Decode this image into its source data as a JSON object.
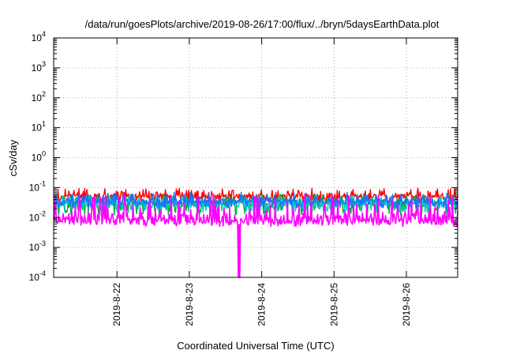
{
  "chart_data": {
    "type": "line",
    "title": "/data/run/goesPlots/archive/2019-08-26/17:00/flux/../bryn/5daysEarthData.plot",
    "xlabel": "Coordinated Universal Time (UTC)",
    "ylabel": "cSv/day",
    "x_range": [
      "2019-08-21T03:00",
      "2019-08-26T17:00"
    ],
    "x_ticks": [
      "2019-8-22",
      "2019-8-23",
      "2019-8-24",
      "2019-8-25",
      "2019-8-26"
    ],
    "y_scale": "log",
    "ylim": [
      0.0001,
      10000
    ],
    "y_ticks": [
      {
        "base": "10",
        "exp": "-4",
        "value": 0.0001
      },
      {
        "base": "10",
        "exp": "-3",
        "value": 0.001
      },
      {
        "base": "10",
        "exp": "-2",
        "value": 0.01
      },
      {
        "base": "10",
        "exp": "-1",
        "value": 0.1
      },
      {
        "base": "10",
        "exp": "0",
        "value": 1
      },
      {
        "base": "10",
        "exp": "1",
        "value": 10
      },
      {
        "base": "10",
        "exp": "2",
        "value": 100
      },
      {
        "base": "10",
        "exp": "3",
        "value": 1000
      },
      {
        "base": "10",
        "exp": "4",
        "value": 10000
      }
    ],
    "grid": true,
    "series": [
      {
        "color": "#ff0000",
        "median": 0.05,
        "spread_low": 0.03,
        "spread_high": 0.095
      },
      {
        "color": "#00aa44",
        "median": 0.03,
        "spread_low": 0.012,
        "spread_high": 0.06
      },
      {
        "color": "#00cccc",
        "median": 0.03,
        "spread_low": 0.015,
        "spread_high": 0.055
      },
      {
        "color": "#1e6fff",
        "median": 0.035,
        "spread_low": 0.02,
        "spread_high": 0.07
      },
      {
        "color": "#ff00ff",
        "median": 0.009,
        "spread_low": 0.005,
        "spread_high": 0.06
      }
    ],
    "annotations": [
      {
        "series_color": "#ff00ff",
        "time": "2019-08-23T16:30",
        "min_value": 0.0001,
        "note": "dropout"
      }
    ]
  }
}
